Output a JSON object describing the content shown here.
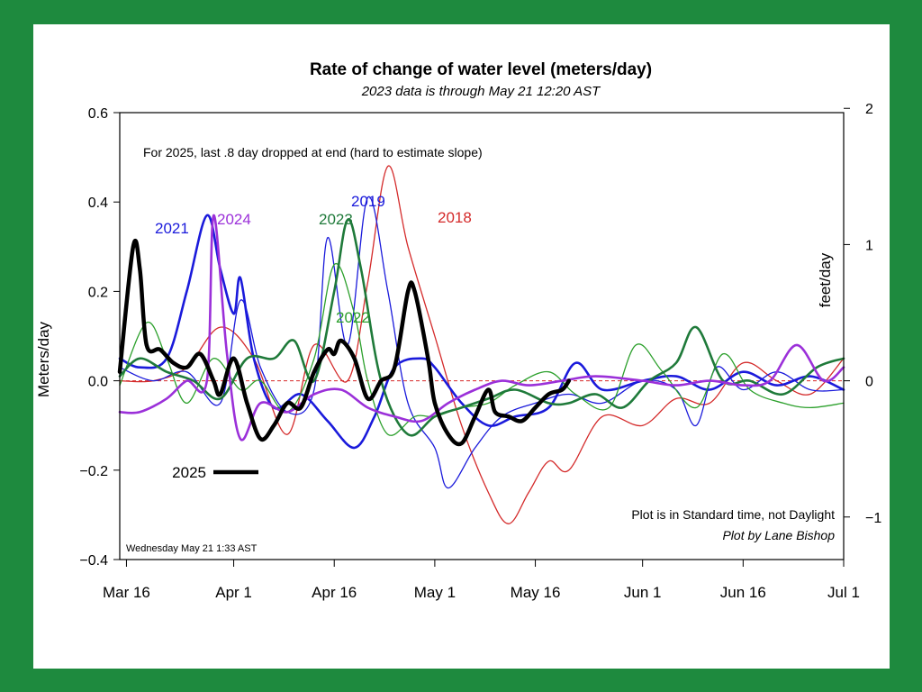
{
  "chart_data": {
    "type": "line",
    "title": "Rate of change of water level (meters/day)",
    "subtitle": "2023 data is through May 21 12:20 AST",
    "ylabel": "Meters/day",
    "ylabel_right": "feet/day",
    "ylim": [
      -0.4,
      0.6
    ],
    "y_ticks": [
      {
        "value": 0.6,
        "label": "0.6"
      },
      {
        "value": 0.4,
        "label": "0.4"
      },
      {
        "value": 0.2,
        "label": "0.2"
      },
      {
        "value": 0.0,
        "label": "0.0"
      },
      {
        "value": -0.2,
        "label": "−0.2"
      },
      {
        "value": -0.4,
        "label": "−0.4"
      }
    ],
    "y_ticks_right": [
      {
        "value": 0.6096,
        "label": "2"
      },
      {
        "value": 0.3048,
        "label": "1"
      },
      {
        "value": 0.0,
        "label": "0"
      },
      {
        "value": -0.3048,
        "label": "−1"
      }
    ],
    "x_ticks": [
      {
        "value": "2023-03-16",
        "label": "Mar 16"
      },
      {
        "value": "2023-04-01",
        "label": "Apr 1"
      },
      {
        "value": "2023-04-16",
        "label": "Apr 16"
      },
      {
        "value": "2023-05-01",
        "label": "May 1"
      },
      {
        "value": "2023-05-16",
        "label": "May 16"
      },
      {
        "value": "2023-06-01",
        "label": "Jun 1"
      },
      {
        "value": "2023-06-16",
        "label": "Jun 16"
      },
      {
        "value": "2023-07-01",
        "label": "Jul 1"
      }
    ],
    "xlim": [
      "2023-03-15",
      "2023-07-01"
    ],
    "zero_line_color": "#d62728",
    "annotations": {
      "top_note": "For 2025, last .8 day dropped at end (hard to estimate slope)",
      "time_note": "Plot is in Standard time, not Daylight",
      "credit": "Plot by Lane Bishop",
      "timestamp": "Wednesday May 21  1:33 AST"
    },
    "legend": {
      "label": "2025",
      "color": "#000000"
    },
    "series": [
      {
        "name": "2018",
        "color": "#d42a2a",
        "width": 1.3,
        "points": [
          [
            "2023-03-15",
            0.0
          ],
          [
            "2023-03-20",
            0.0
          ],
          [
            "2023-03-25",
            0.03
          ],
          [
            "2023-03-30",
            0.12
          ],
          [
            "2023-04-04",
            0.05
          ],
          [
            "2023-04-09",
            -0.12
          ],
          [
            "2023-04-13",
            0.08
          ],
          [
            "2023-04-18",
            0.0
          ],
          [
            "2023-04-21",
            0.22
          ],
          [
            "2023-04-24",
            0.48
          ],
          [
            "2023-04-27",
            0.3
          ],
          [
            "2023-05-01",
            0.1
          ],
          [
            "2023-05-05",
            -0.1
          ],
          [
            "2023-05-09",
            -0.25
          ],
          [
            "2023-05-12",
            -0.32
          ],
          [
            "2023-05-15",
            -0.25
          ],
          [
            "2023-05-18",
            -0.18
          ],
          [
            "2023-05-21",
            -0.2
          ],
          [
            "2023-05-26",
            -0.08
          ],
          [
            "2023-06-01",
            -0.1
          ],
          [
            "2023-06-06",
            -0.04
          ],
          [
            "2023-06-11",
            -0.05
          ],
          [
            "2023-06-16",
            0.04
          ],
          [
            "2023-06-21",
            0.0
          ],
          [
            "2023-06-26",
            -0.03
          ],
          [
            "2023-07-01",
            0.05
          ]
        ]
      },
      {
        "name": "2019",
        "color": "#1a1adb",
        "width": 1.3,
        "points": [
          [
            "2023-03-15",
            0.03
          ],
          [
            "2023-03-20",
            0.0
          ],
          [
            "2023-03-25",
            0.02
          ],
          [
            "2023-03-30",
            -0.05
          ],
          [
            "2023-04-02",
            0.18
          ],
          [
            "2023-04-05",
            0.03
          ],
          [
            "2023-04-09",
            -0.07
          ],
          [
            "2023-04-13",
            -0.02
          ],
          [
            "2023-04-15",
            0.32
          ],
          [
            "2023-04-18",
            0.08
          ],
          [
            "2023-04-21",
            0.41
          ],
          [
            "2023-04-24",
            0.2
          ],
          [
            "2023-04-27",
            -0.05
          ],
          [
            "2023-05-01",
            -0.15
          ],
          [
            "2023-05-03",
            -0.24
          ],
          [
            "2023-05-07",
            -0.15
          ],
          [
            "2023-05-11",
            -0.08
          ],
          [
            "2023-05-16",
            -0.05
          ],
          [
            "2023-05-21",
            -0.03
          ],
          [
            "2023-05-26",
            -0.05
          ],
          [
            "2023-06-01",
            0.0
          ],
          [
            "2023-06-06",
            -0.02
          ],
          [
            "2023-06-09",
            -0.1
          ],
          [
            "2023-06-12",
            0.03
          ],
          [
            "2023-06-16",
            -0.02
          ],
          [
            "2023-06-21",
            0.02
          ],
          [
            "2023-06-26",
            -0.02
          ],
          [
            "2023-07-01",
            -0.02
          ]
        ]
      },
      {
        "name": "2021",
        "color": "#1a1adb",
        "width": 2.6,
        "points": [
          [
            "2023-03-15",
            0.05
          ],
          [
            "2023-03-18",
            0.03
          ],
          [
            "2023-03-22",
            0.05
          ],
          [
            "2023-03-25",
            0.2
          ],
          [
            "2023-03-28",
            0.37
          ],
          [
            "2023-03-30",
            0.25
          ],
          [
            "2023-04-01",
            0.15
          ],
          [
            "2023-04-02",
            0.23
          ],
          [
            "2023-04-04",
            0.05
          ],
          [
            "2023-04-07",
            -0.06
          ],
          [
            "2023-04-11",
            -0.03
          ],
          [
            "2023-04-15",
            -0.09
          ],
          [
            "2023-04-19",
            -0.15
          ],
          [
            "2023-04-22",
            -0.08
          ],
          [
            "2023-04-25",
            0.03
          ],
          [
            "2023-04-29",
            0.05
          ],
          [
            "2023-05-01",
            0.03
          ],
          [
            "2023-05-05",
            -0.05
          ],
          [
            "2023-05-09",
            -0.1
          ],
          [
            "2023-05-13",
            -0.08
          ],
          [
            "2023-05-18",
            -0.06
          ],
          [
            "2023-05-22",
            0.04
          ],
          [
            "2023-05-26",
            -0.02
          ],
          [
            "2023-06-01",
            0.0
          ],
          [
            "2023-06-06",
            0.01
          ],
          [
            "2023-06-11",
            -0.02
          ],
          [
            "2023-06-16",
            0.02
          ],
          [
            "2023-06-21",
            -0.01
          ],
          [
            "2023-06-26",
            0.01
          ],
          [
            "2023-07-01",
            -0.02
          ]
        ]
      },
      {
        "name": "2022",
        "color": "#2ca02c",
        "width": 1.3,
        "points": [
          [
            "2023-03-15",
            -0.01
          ],
          [
            "2023-03-19",
            0.13
          ],
          [
            "2023-03-22",
            0.05
          ],
          [
            "2023-03-25",
            -0.05
          ],
          [
            "2023-03-29",
            0.05
          ],
          [
            "2023-04-02",
            -0.02
          ],
          [
            "2023-04-05",
            0.0
          ],
          [
            "2023-04-09",
            -0.07
          ],
          [
            "2023-04-13",
            0.05
          ],
          [
            "2023-04-16",
            0.26
          ],
          [
            "2023-04-19",
            0.15
          ],
          [
            "2023-04-21",
            0.0
          ],
          [
            "2023-04-24",
            -0.12
          ],
          [
            "2023-04-28",
            -0.08
          ],
          [
            "2023-05-01",
            -0.08
          ],
          [
            "2023-05-05",
            -0.06
          ],
          [
            "2023-05-09",
            -0.05
          ],
          [
            "2023-05-13",
            -0.01
          ],
          [
            "2023-05-18",
            0.02
          ],
          [
            "2023-05-22",
            -0.03
          ],
          [
            "2023-05-27",
            -0.06
          ],
          [
            "2023-05-31",
            0.08
          ],
          [
            "2023-06-04",
            0.02
          ],
          [
            "2023-06-09",
            -0.06
          ],
          [
            "2023-06-13",
            0.06
          ],
          [
            "2023-06-17",
            -0.02
          ],
          [
            "2023-06-22",
            -0.05
          ],
          [
            "2023-06-26",
            -0.06
          ],
          [
            "2023-07-01",
            -0.05
          ]
        ]
      },
      {
        "name": "2023",
        "color": "#1f7a3a",
        "width": 2.6,
        "points": [
          [
            "2023-03-15",
            0.01
          ],
          [
            "2023-03-18",
            0.05
          ],
          [
            "2023-03-22",
            0.02
          ],
          [
            "2023-03-26",
            0.0
          ],
          [
            "2023-03-30",
            -0.04
          ],
          [
            "2023-04-03",
            0.05
          ],
          [
            "2023-04-07",
            0.05
          ],
          [
            "2023-04-10",
            0.09
          ],
          [
            "2023-04-13",
            0.0
          ],
          [
            "2023-04-16",
            0.2
          ],
          [
            "2023-04-18",
            0.36
          ],
          [
            "2023-04-20",
            0.25
          ],
          [
            "2023-04-23",
            0.0
          ],
          [
            "2023-04-27",
            -0.12
          ],
          [
            "2023-05-01",
            -0.08
          ],
          [
            "2023-05-05",
            -0.06
          ],
          [
            "2023-05-09",
            -0.04
          ],
          [
            "2023-05-13",
            -0.02
          ],
          [
            "2023-05-18",
            -0.05
          ],
          [
            "2023-05-21",
            -0.05
          ],
          [
            "2023-05-25",
            -0.03
          ],
          [
            "2023-05-29",
            -0.06
          ],
          [
            "2023-06-02",
            0.0
          ],
          [
            "2023-06-06",
            0.04
          ],
          [
            "2023-06-09",
            0.12
          ],
          [
            "2023-06-13",
            0.0
          ],
          [
            "2023-06-17",
            0.0
          ],
          [
            "2023-06-22",
            -0.03
          ],
          [
            "2023-06-27",
            0.03
          ],
          [
            "2023-07-01",
            0.05
          ]
        ]
      },
      {
        "name": "2024",
        "color": "#9b30d9",
        "width": 2.6,
        "points": [
          [
            "2023-03-15",
            -0.07
          ],
          [
            "2023-03-18",
            -0.07
          ],
          [
            "2023-03-22",
            -0.04
          ],
          [
            "2023-03-25",
            0.0
          ],
          [
            "2023-03-28",
            0.0
          ],
          [
            "2023-03-29",
            0.37
          ],
          [
            "2023-03-31",
            0.06
          ],
          [
            "2023-04-02",
            -0.13
          ],
          [
            "2023-04-05",
            -0.05
          ],
          [
            "2023-04-09",
            -0.07
          ],
          [
            "2023-04-13",
            -0.03
          ],
          [
            "2023-04-17",
            -0.02
          ],
          [
            "2023-04-21",
            -0.06
          ],
          [
            "2023-04-25",
            -0.08
          ],
          [
            "2023-04-29",
            -0.09
          ],
          [
            "2023-05-03",
            -0.05
          ],
          [
            "2023-05-07",
            -0.02
          ],
          [
            "2023-05-11",
            0.0
          ],
          [
            "2023-05-15",
            -0.01
          ],
          [
            "2023-05-20",
            0.0
          ],
          [
            "2023-05-25",
            0.01
          ],
          [
            "2023-06-01",
            0.0
          ],
          [
            "2023-06-06",
            -0.01
          ],
          [
            "2023-06-11",
            0.0
          ],
          [
            "2023-06-16",
            -0.01
          ],
          [
            "2023-06-20",
            0.0
          ],
          [
            "2023-06-24",
            0.08
          ],
          [
            "2023-06-28",
            0.0
          ],
          [
            "2023-07-01",
            0.03
          ]
        ]
      },
      {
        "name": "2025",
        "color": "#000000",
        "width": 4.5,
        "points": [
          [
            "2023-03-15",
            0.02
          ],
          [
            "2023-03-17",
            0.3
          ],
          [
            "2023-03-18",
            0.25
          ],
          [
            "2023-03-19",
            0.08
          ],
          [
            "2023-03-21",
            0.07
          ],
          [
            "2023-03-23",
            0.04
          ],
          [
            "2023-03-25",
            0.03
          ],
          [
            "2023-03-27",
            0.06
          ],
          [
            "2023-03-29",
            0.0
          ],
          [
            "2023-03-30",
            -0.03
          ],
          [
            "2023-04-01",
            0.05
          ],
          [
            "2023-04-03",
            -0.05
          ],
          [
            "2023-04-05",
            -0.13
          ],
          [
            "2023-04-07",
            -0.1
          ],
          [
            "2023-04-09",
            -0.05
          ],
          [
            "2023-04-11",
            -0.06
          ],
          [
            "2023-04-13",
            0.02
          ],
          [
            "2023-04-15",
            0.07
          ],
          [
            "2023-04-16",
            0.06
          ],
          [
            "2023-04-17",
            0.09
          ],
          [
            "2023-04-19",
            0.05
          ],
          [
            "2023-04-21",
            -0.04
          ],
          [
            "2023-04-23",
            0.0
          ],
          [
            "2023-04-25",
            0.03
          ],
          [
            "2023-04-27",
            0.2
          ],
          [
            "2023-04-28",
            0.2
          ],
          [
            "2023-04-30",
            0.05
          ],
          [
            "2023-05-01",
            -0.05
          ],
          [
            "2023-05-03",
            -0.12
          ],
          [
            "2023-05-05",
            -0.14
          ],
          [
            "2023-05-07",
            -0.08
          ],
          [
            "2023-05-09",
            -0.02
          ],
          [
            "2023-05-10",
            -0.07
          ],
          [
            "2023-05-12",
            -0.08
          ],
          [
            "2023-05-14",
            -0.09
          ],
          [
            "2023-05-16",
            -0.06
          ],
          [
            "2023-05-18",
            -0.03
          ],
          [
            "2023-05-20",
            -0.02
          ],
          [
            "2023-05-21",
            0.0
          ]
        ]
      }
    ],
    "series_labels": [
      {
        "text": "2021",
        "color": "#1a1adb"
      },
      {
        "text": "2024",
        "color": "#9b30d9"
      },
      {
        "text": "2023",
        "color": "#1f7a3a"
      },
      {
        "text": "2019",
        "color": "#1a1adb"
      },
      {
        "text": "2018",
        "color": "#d42a2a"
      },
      {
        "text": "2022",
        "color": "#2ca02c"
      }
    ]
  }
}
